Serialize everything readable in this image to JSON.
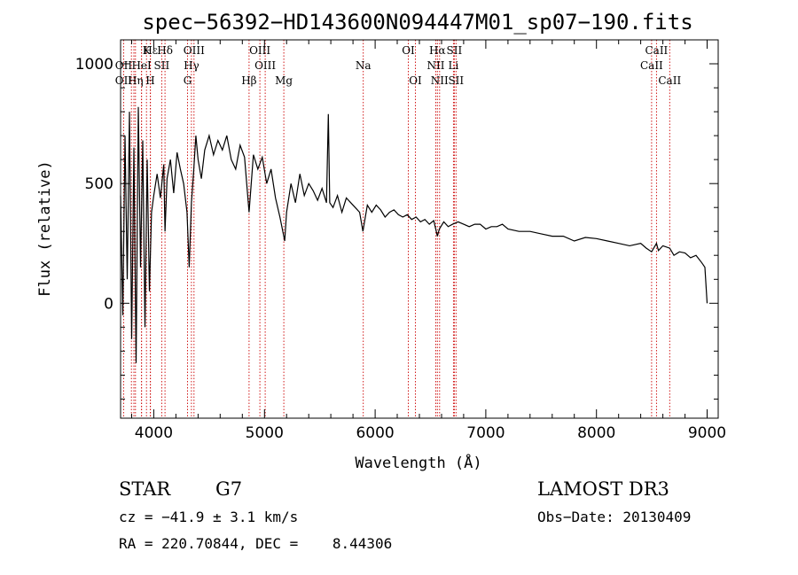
{
  "chart_data": {
    "type": "line",
    "title": "spec−56392−HD143600N094447M01_sp07−190.fits",
    "xlabel": "Wavelength (Å)",
    "ylabel": "Flux (relative)",
    "xlim": [
      3700,
      9100
    ],
    "ylim": [
      -480,
      1100
    ],
    "x_ticks": [
      4000,
      5000,
      6000,
      7000,
      8000,
      9000
    ],
    "y_ticks": [
      0,
      500,
      1000
    ],
    "y_tick_labels": [
      "0",
      "500",
      "1000"
    ],
    "series": [
      {
        "name": "flux",
        "x": [
          3700,
          3720,
          3740,
          3760,
          3780,
          3800,
          3820,
          3840,
          3860,
          3880,
          3900,
          3920,
          3940,
          3960,
          3980,
          4000,
          4030,
          4060,
          4090,
          4101,
          4120,
          4150,
          4180,
          4210,
          4240,
          4270,
          4300,
          4320,
          4340,
          4360,
          4380,
          4400,
          4430,
          4460,
          4500,
          4540,
          4580,
          4620,
          4660,
          4700,
          4740,
          4780,
          4820,
          4861,
          4900,
          4940,
          4980,
          5020,
          5060,
          5100,
          5140,
          5170,
          5183,
          5200,
          5240,
          5280,
          5320,
          5360,
          5400,
          5440,
          5480,
          5520,
          5560,
          5577,
          5590,
          5620,
          5660,
          5700,
          5740,
          5780,
          5820,
          5860,
          5890,
          5930,
          5970,
          6010,
          6050,
          6090,
          6130,
          6170,
          6210,
          6250,
          6290,
          6330,
          6370,
          6410,
          6450,
          6490,
          6530,
          6563,
          6580,
          6620,
          6660,
          6700,
          6750,
          6800,
          6850,
          6900,
          6950,
          7000,
          7050,
          7100,
          7150,
          7200,
          7300,
          7400,
          7500,
          7600,
          7700,
          7800,
          7900,
          8000,
          8100,
          8200,
          8300,
          8400,
          8450,
          8498,
          8542,
          8560,
          8600,
          8662,
          8700,
          8750,
          8800,
          8850,
          8900,
          8950,
          8980,
          9000
        ],
        "y": [
          450,
          -50,
          700,
          100,
          800,
          -150,
          650,
          -250,
          820,
          150,
          680,
          -100,
          600,
          50,
          380,
          450,
          540,
          440,
          580,
          300,
          520,
          600,
          460,
          630,
          560,
          500,
          380,
          150,
          420,
          550,
          700,
          600,
          520,
          640,
          700,
          620,
          680,
          640,
          700,
          600,
          560,
          660,
          610,
          380,
          620,
          560,
          610,
          500,
          560,
          440,
          360,
          290,
          260,
          380,
          500,
          420,
          540,
          450,
          500,
          470,
          430,
          480,
          420,
          790,
          420,
          400,
          450,
          380,
          440,
          420,
          400,
          380,
          300,
          410,
          380,
          410,
          390,
          360,
          380,
          390,
          370,
          360,
          370,
          350,
          360,
          340,
          350,
          330,
          345,
          280,
          310,
          340,
          320,
          330,
          340,
          330,
          320,
          330,
          330,
          310,
          320,
          320,
          330,
          310,
          300,
          300,
          290,
          280,
          280,
          260,
          275,
          270,
          260,
          250,
          240,
          250,
          230,
          215,
          250,
          220,
          240,
          230,
          200,
          215,
          210,
          190,
          200,
          170,
          150,
          0
        ]
      }
    ],
    "spectral_lines": [
      {
        "label": "Hε",
        "wl": 3970,
        "row": 1
      },
      {
        "label": "K",
        "wl": 3934,
        "row": 1
      },
      {
        "label": "Hδ",
        "wl": 4101,
        "row": 1
      },
      {
        "label": "OIII",
        "wl": 4363,
        "row": 1
      },
      {
        "label": "OIII",
        "wl": 4959,
        "row": 1
      },
      {
        "label": "OI",
        "wl": 6300,
        "row": 1
      },
      {
        "label": "Hα",
        "wl": 6563,
        "row": 1
      },
      {
        "label": "SII",
        "wl": 6716,
        "row": 1
      },
      {
        "label": "CaII",
        "wl": 8542,
        "row": 1
      },
      {
        "label": "OII",
        "wl": 3727,
        "row": 2
      },
      {
        "label": "HeI",
        "wl": 3889,
        "row": 2
      },
      {
        "label": "SII",
        "wl": 4072,
        "row": 2
      },
      {
        "label": "Hγ",
        "wl": 4340,
        "row": 2
      },
      {
        "label": "OIII",
        "wl": 5007,
        "row": 2
      },
      {
        "label": "Na",
        "wl": 5893,
        "row": 2
      },
      {
        "label": "NII",
        "wl": 6548,
        "row": 2
      },
      {
        "label": "Li",
        "wl": 6708,
        "row": 2
      },
      {
        "label": "CaII",
        "wl": 8498,
        "row": 2
      },
      {
        "label": "OII",
        "wl": 3727,
        "row": 3
      },
      {
        "label": "Hη",
        "wl": 3835,
        "row": 3
      },
      {
        "label": "H",
        "wl": 3968,
        "row": 3
      },
      {
        "label": "G",
        "wl": 4305,
        "row": 3
      },
      {
        "label": "Hβ",
        "wl": 4861,
        "row": 3
      },
      {
        "label": "Mg",
        "wl": 5175,
        "row": 3
      },
      {
        "label": "OI",
        "wl": 6364,
        "row": 3
      },
      {
        "label": "NII",
        "wl": 6583,
        "row": 3
      },
      {
        "label": "SII",
        "wl": 6731,
        "row": 3
      },
      {
        "label": "CaII",
        "wl": 8662,
        "row": 3
      }
    ],
    "extra_line_markers": [
      3798,
      3820,
      3890,
      3934,
      4101,
      4072,
      4305,
      4340,
      4363,
      4861,
      4959,
      5007,
      5175,
      5893,
      6300,
      6364,
      6548,
      6563,
      6583,
      6708,
      6716,
      6731,
      8498,
      8542,
      8662
    ]
  },
  "info": {
    "object_class": "STAR",
    "subclass": "G7",
    "survey": "LAMOST DR3",
    "redshift": "cz = −41.9 ± 3.1 km/s",
    "obs_date": "Obs−Date: 20130409",
    "coords": "RA = 220.70844, DEC =    8.44306"
  },
  "colors": {
    "spectrum": "#000000",
    "line_markers": "#cc0000",
    "axes": "#000000"
  }
}
